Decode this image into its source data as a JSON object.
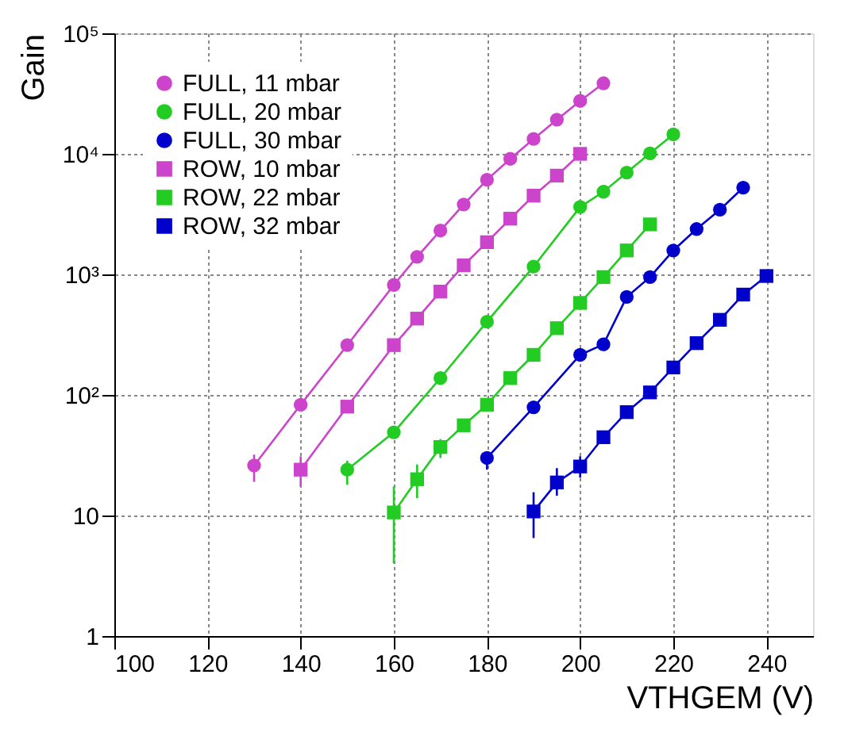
{
  "chart_data": {
    "type": "line",
    "xlabel": "VTHGEM (V)",
    "ylabel": "Gain",
    "log": "y",
    "xlim": [
      100,
      250
    ],
    "xticks": [
      100,
      120,
      140,
      160,
      180,
      200,
      220,
      240
    ],
    "ylim": [
      1,
      100000
    ],
    "yticks": [
      1,
      10,
      {
        "value": 100,
        "label": "10²"
      },
      {
        "value": 1000,
        "label": "10³"
      },
      {
        "value": 10000,
        "label": "10⁴"
      },
      {
        "value": 100000,
        "label": "10⁵"
      }
    ],
    "grid": true,
    "legend": "top left",
    "line_style": "solid",
    "series": [
      {
        "name": "FULL, 11 mbar",
        "color": "#cc44cc",
        "marker": "circle",
        "x": [
          130,
          140,
          150,
          160,
          165,
          170,
          175,
          180,
          185,
          190,
          195,
          200,
          205
        ],
        "values": [
          26,
          83,
          259,
          818,
          1400,
          2310,
          3800,
          6100,
          9100,
          13300,
          19200,
          27500,
          38500
        ],
        "errors": [
          [
            19,
            32
          ],
          null,
          null,
          null,
          null,
          null,
          null,
          null,
          null,
          null,
          null,
          null,
          null
        ]
      },
      {
        "name": "FULL, 20 mbar",
        "color": "#22cc22",
        "marker": "circle",
        "x": [
          150,
          160,
          170,
          180,
          190,
          200,
          205,
          210,
          215,
          220
        ],
        "values": [
          24,
          49,
          138,
          405,
          1160,
          3630,
          4850,
          7000,
          10100,
          14500
        ],
        "errors": [
          [
            18,
            28.5
          ],
          null,
          null,
          null,
          null,
          null,
          null,
          null,
          null,
          null
        ]
      },
      {
        "name": "FULL, 30 mbar",
        "color": "#0000cc",
        "marker": "circle",
        "x": [
          180,
          190,
          200,
          205,
          210,
          215,
          220,
          225,
          230,
          235
        ],
        "values": [
          30,
          79,
          215,
          263,
          650,
          950,
          1580,
          2380,
          3440,
          5250
        ],
        "errors": [
          [
            24,
            34
          ],
          null,
          null,
          null,
          null,
          null,
          null,
          null,
          null,
          null
        ]
      },
      {
        "name": "ROW, 10 mbar",
        "color": "#cc44cc",
        "marker": "square",
        "x": [
          140,
          150,
          160,
          165,
          170,
          175,
          180,
          185,
          190,
          195,
          200
        ],
        "values": [
          24,
          80,
          259,
          430,
          720,
          1190,
          1850,
          2900,
          4500,
          6600,
          10000
        ],
        "errors": [
          [
            17.3,
            31
          ],
          null,
          null,
          null,
          null,
          null,
          null,
          null,
          null,
          null,
          null
        ]
      },
      {
        "name": "ROW, 22 mbar",
        "color": "#22cc22",
        "marker": "square",
        "x": [
          160,
          165,
          170,
          175,
          180,
          185,
          190,
          195,
          200,
          205,
          210,
          215
        ],
        "values": [
          10.6,
          20,
          37,
          56,
          83,
          138,
          215,
          358,
          580,
          950,
          1580,
          2600
        ],
        "errors": [
          [
            4,
            17.4
          ],
          [
            13.9,
            26.5
          ],
          [
            30,
            43
          ],
          null,
          null,
          null,
          null,
          null,
          null,
          null,
          null,
          null
        ]
      },
      {
        "name": "ROW, 32 mbar",
        "color": "#0000cc",
        "marker": "square",
        "x": [
          190,
          195,
          200,
          205,
          210,
          215,
          220,
          225,
          230,
          235,
          240
        ],
        "values": [
          10.8,
          18.8,
          25.5,
          44.6,
          72,
          105,
          169,
          269,
          420,
          680,
          970
        ],
        "errors": [
          [
            6.5,
            15.6
          ],
          [
            14.6,
            24.7
          ],
          [
            20.6,
            31
          ],
          null,
          null,
          null,
          null,
          null,
          null,
          null,
          null
        ]
      }
    ]
  }
}
